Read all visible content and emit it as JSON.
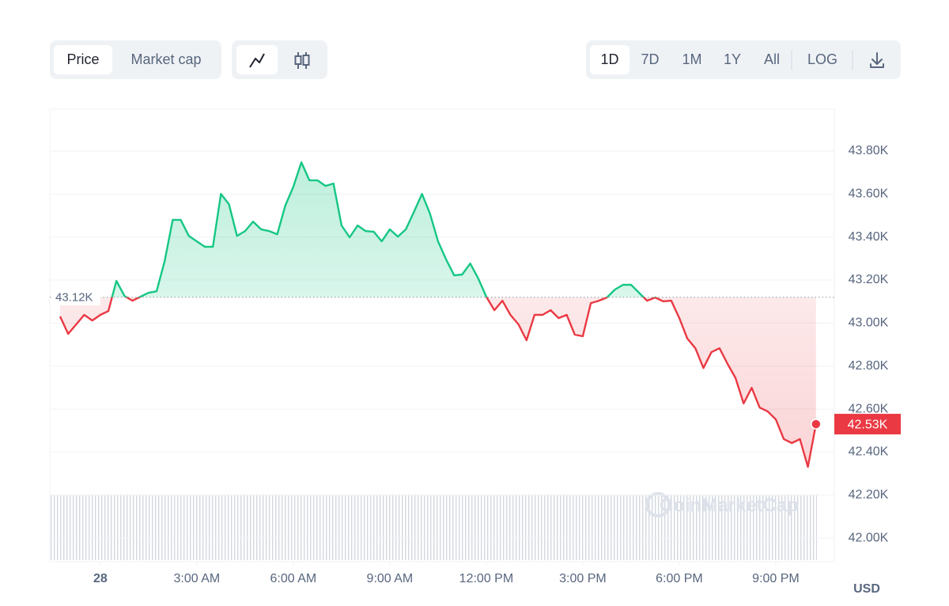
{
  "controls": {
    "metrics": [
      "Price",
      "Market cap"
    ],
    "ranges": [
      "1D",
      "7D",
      "1M",
      "1Y",
      "All"
    ],
    "scale": "LOG",
    "currency": "USD",
    "watermark": "CoinMarketCap"
  },
  "chart_data": {
    "type": "line",
    "x": [
      -1.25,
      -1,
      -0.75,
      -0.5,
      -0.25,
      0,
      0.25,
      0.5,
      0.75,
      1,
      1.25,
      1.5,
      1.75,
      2,
      2.25,
      2.5,
      2.75,
      3,
      3.25,
      3.5,
      3.75,
      4,
      4.25,
      4.5,
      4.75,
      5,
      5.25,
      5.5,
      5.75,
      6,
      6.25,
      6.5,
      6.75,
      7,
      7.25,
      7.5,
      7.75,
      8,
      8.25,
      8.5,
      8.75,
      9,
      9.25,
      9.5,
      9.75,
      10,
      10.25,
      10.5,
      10.75,
      11,
      11.25,
      11.5,
      11.75,
      12,
      12.25,
      12.5,
      12.75,
      13,
      13.25,
      13.5,
      13.75,
      14,
      14.25,
      14.5,
      14.75,
      15,
      15.25,
      15.5,
      15.75,
      16,
      16.25,
      16.5,
      16.75,
      17,
      17.25,
      17.5,
      17.75,
      18,
      18.25,
      18.5,
      18.75,
      19,
      19.25,
      19.5,
      19.75,
      20,
      20.25,
      20.5,
      20.75,
      21,
      21.25,
      21.5,
      21.75,
      22,
      22.25
    ],
    "values": [
      43031,
      42950,
      42994,
      43038,
      43012,
      43038,
      43056,
      43196,
      43126,
      43104,
      43123,
      43141,
      43148,
      43288,
      43480,
      43480,
      43406,
      43380,
      43355,
      43355,
      43601,
      43553,
      43406,
      43428,
      43472,
      43436,
      43428,
      43413,
      43546,
      43634,
      43748,
      43664,
      43664,
      43638,
      43649,
      43454,
      43399,
      43454,
      43428,
      43425,
      43380,
      43436,
      43402,
      43436,
      43517,
      43601,
      43509,
      43380,
      43296,
      43222,
      43226,
      43277,
      43207,
      43123,
      43060,
      43104,
      43038,
      42994,
      42920,
      43038,
      43038,
      43060,
      43023,
      43038,
      42946,
      42939,
      43093,
      43104,
      43119,
      43156,
      43178,
      43178,
      43141,
      43104,
      43119,
      43101,
      43104,
      43023,
      42928,
      42883,
      42791,
      42865,
      42883,
      42810,
      42744,
      42626,
      42699,
      42607,
      42589,
      42552,
      42460,
      42442,
      42460,
      42331,
      42530
    ],
    "value_labels": [
      null,
      null,
      null,
      null,
      null,
      null,
      null,
      null,
      null,
      null,
      null,
      null,
      null,
      null,
      null,
      null,
      null,
      null,
      null,
      null,
      null,
      null,
      null,
      null,
      null,
      null,
      null,
      null,
      null,
      null,
      null,
      null,
      null,
      null,
      null,
      null,
      null,
      null,
      null,
      null,
      null,
      null,
      null,
      null,
      null,
      null,
      null,
      null,
      null,
      null,
      null,
      null,
      null,
      null,
      null,
      null,
      null,
      null,
      null,
      null,
      null,
      null,
      null,
      null,
      null,
      null,
      null,
      null,
      null,
      null,
      null,
      null,
      null,
      null,
      null,
      null,
      null,
      null,
      null,
      null,
      null,
      null,
      null,
      null,
      null,
      null,
      null,
      null,
      null,
      null,
      null,
      null,
      null,
      null,
      "42.53K"
    ],
    "reference": {
      "value": 43120,
      "label": "43.12K"
    },
    "up_color": "#16c784",
    "down_color": "#ea3943",
    "xlim": [
      -1.57,
      22.82
    ],
    "xticks": [
      {
        "value": 0,
        "label": "28"
      },
      {
        "value": 3,
        "label": "3:00 AM"
      },
      {
        "value": 6,
        "label": "6:00 AM"
      },
      {
        "value": 9,
        "label": "9:00 AM"
      },
      {
        "value": 12,
        "label": "12:00 PM"
      },
      {
        "value": 15,
        "label": "3:00 PM"
      },
      {
        "value": 18,
        "label": "6:00 PM"
      },
      {
        "value": 21,
        "label": "9:00 PM"
      }
    ],
    "ylim": [
      41890,
      43995
    ],
    "yticks": [
      {
        "value": 42000,
        "label": "42.00K"
      },
      {
        "value": 42200,
        "label": "42.20K"
      },
      {
        "value": 42400,
        "label": "42.40K"
      },
      {
        "value": 42600,
        "label": "42.60K"
      },
      {
        "value": 42800,
        "label": "42.80K"
      },
      {
        "value": 43000,
        "label": "43.00K"
      },
      {
        "value": 43200,
        "label": "43.20K"
      },
      {
        "value": 43400,
        "label": "43.40K"
      },
      {
        "value": 43600,
        "label": "43.60K"
      },
      {
        "value": 43800,
        "label": "43.80K"
      }
    ],
    "grid": true
  }
}
